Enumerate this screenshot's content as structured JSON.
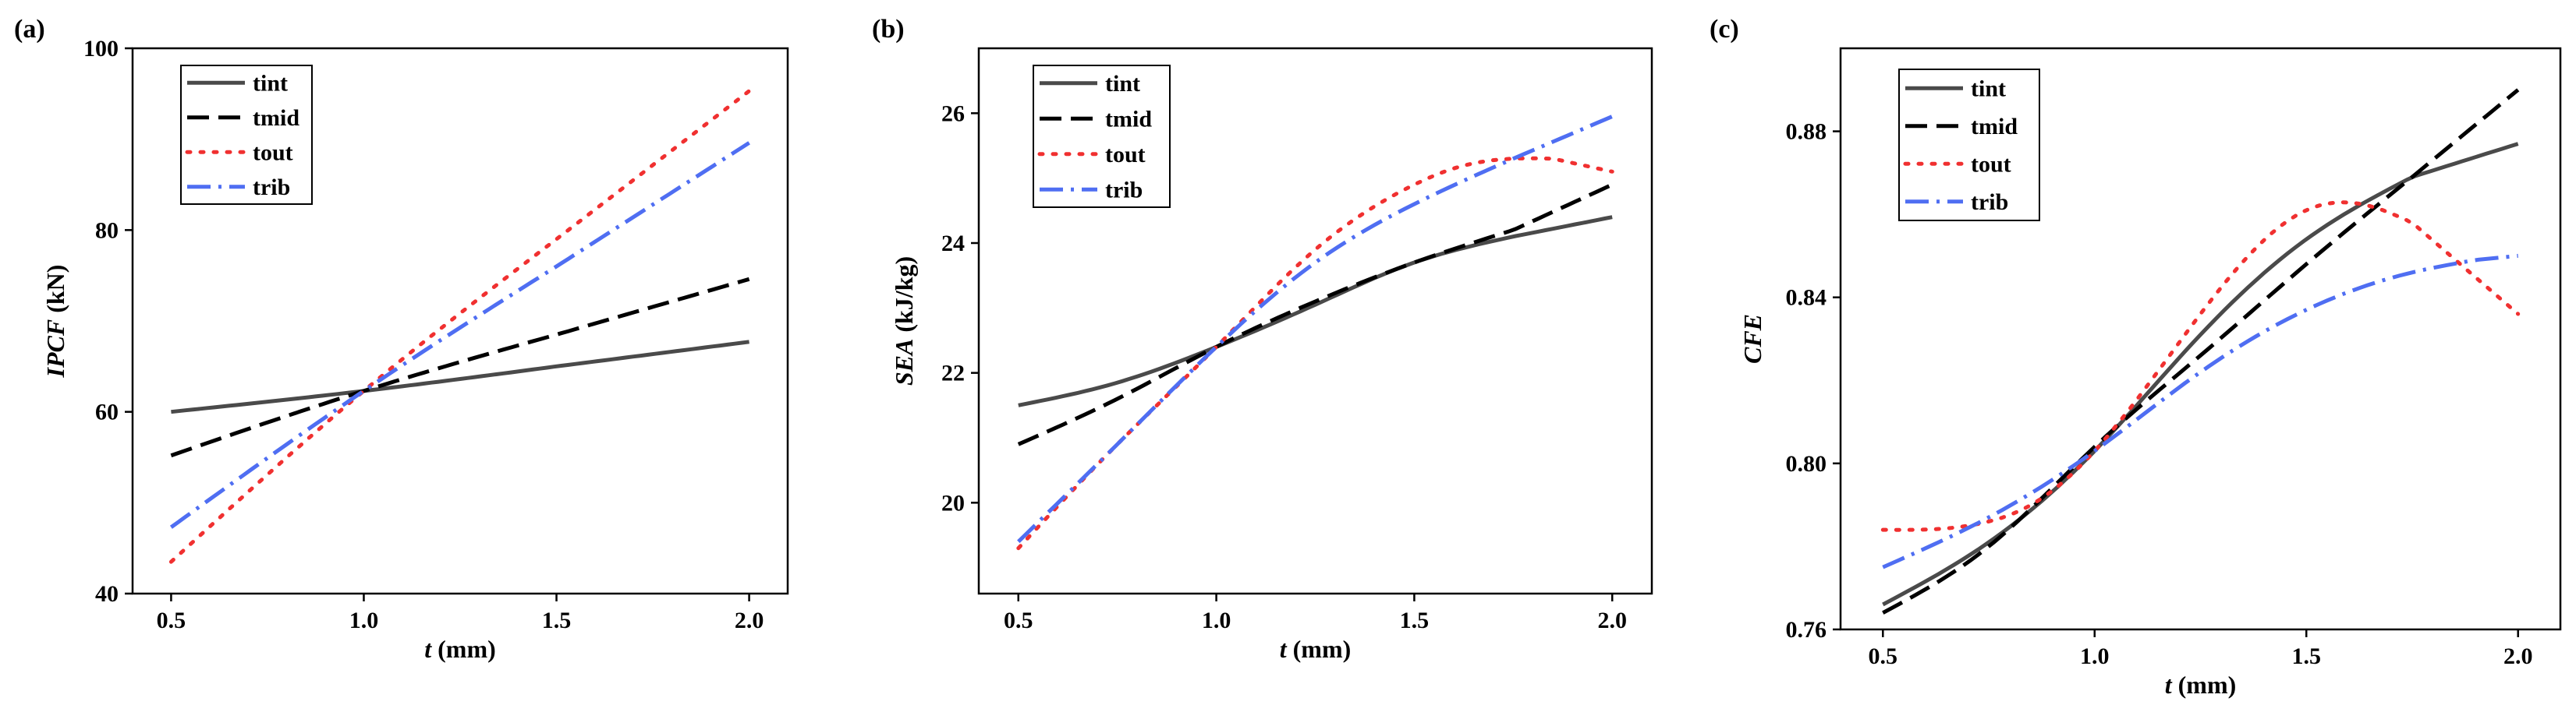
{
  "chart_data": [
    {
      "type": "line",
      "panel": "(a)",
      "title": "",
      "xlabel": {
        "main": "t",
        "unit": " (mm)"
      },
      "ylabel": {
        "main": "IPCF",
        "unit": " (kN)"
      },
      "xlim": [
        0.4,
        2.1
      ],
      "ylim": [
        40,
        100
      ],
      "xticks": [
        0.5,
        1.0,
        1.5,
        2.0
      ],
      "xtick_labels": [
        "0.5",
        "1.0",
        "1.5",
        "2.0"
      ],
      "yticks": [
        40,
        60,
        80,
        100
      ],
      "ytick_labels": [
        "40",
        "60",
        "80",
        "100"
      ],
      "legend_position": "top-left",
      "series": [
        {
          "name": "tint",
          "style": "solid",
          "color": "#4a4a4a",
          "x": [
            0.5,
            1.0,
            1.5,
            2.0
          ],
          "y": [
            60.0,
            62.3,
            65.0,
            67.7
          ]
        },
        {
          "name": "tmid",
          "style": "dashed",
          "color": "#000000",
          "x": [
            0.5,
            1.0,
            1.5,
            2.0
          ],
          "y": [
            55.2,
            62.3,
            68.5,
            74.6
          ]
        },
        {
          "name": "tout",
          "style": "dotted",
          "color": "#f03030",
          "x": [
            0.5,
            1.0,
            1.5,
            2.0
          ],
          "y": [
            43.5,
            62.3,
            79.0,
            95.3
          ]
        },
        {
          "name": "trib",
          "style": "dashdot",
          "color": "#4f6ef2",
          "x": [
            0.5,
            1.0,
            1.5,
            2.0
          ],
          "y": [
            47.3,
            62.3,
            76.0,
            89.6
          ]
        }
      ]
    },
    {
      "type": "line",
      "panel": "(b)",
      "title": "",
      "xlabel": {
        "main": "t",
        "unit": " (mm)"
      },
      "ylabel": {
        "main": "SEA",
        "unit": " (kJ/kg)"
      },
      "xlim": [
        0.4,
        2.1
      ],
      "ylim": [
        18.6,
        27.0
      ],
      "xticks": [
        0.5,
        1.0,
        1.5,
        2.0
      ],
      "xtick_labels": [
        "0.5",
        "1.0",
        "1.5",
        "2.0"
      ],
      "yticks": [
        20,
        22,
        24,
        26
      ],
      "ytick_labels": [
        "20",
        "22",
        "24",
        "26"
      ],
      "legend_position": "top-left",
      "series": [
        {
          "name": "tint",
          "style": "solid",
          "color": "#4a4a4a",
          "x": [
            0.5,
            0.75,
            1.0,
            1.25,
            1.5,
            1.75,
            2.0
          ],
          "y": [
            21.5,
            21.85,
            22.4,
            23.05,
            23.7,
            24.1,
            24.4
          ]
        },
        {
          "name": "tmid",
          "style": "dashed",
          "color": "#000000",
          "x": [
            0.5,
            0.75,
            1.0,
            1.25,
            1.5,
            1.75,
            2.0
          ],
          "y": [
            20.9,
            21.6,
            22.4,
            23.1,
            23.7,
            24.2,
            24.9
          ]
        },
        {
          "name": "tout",
          "style": "dotted",
          "color": "#f03030",
          "x": [
            0.5,
            0.75,
            1.0,
            1.25,
            1.5,
            1.6,
            1.75,
            1.85,
            2.0
          ],
          "y": [
            19.3,
            20.9,
            22.4,
            23.9,
            24.9,
            25.15,
            25.3,
            25.3,
            25.1
          ]
        },
        {
          "name": "trib",
          "style": "dashdot",
          "color": "#4f6ef2",
          "x": [
            0.5,
            0.75,
            1.0,
            1.25,
            1.5,
            1.75,
            2.0
          ],
          "y": [
            19.4,
            20.9,
            22.4,
            23.7,
            24.6,
            25.3,
            25.95
          ]
        }
      ]
    },
    {
      "type": "line",
      "panel": "(c)",
      "title": "",
      "xlabel": {
        "main": "t",
        "unit": " (mm)"
      },
      "ylabel": {
        "main": "CFE",
        "unit": ""
      },
      "xlim": [
        0.4,
        2.1
      ],
      "ylim": [
        0.76,
        0.9
      ],
      "xticks": [
        0.5,
        1.0,
        1.5,
        2.0
      ],
      "xtick_labels": [
        "0.5",
        "1.0",
        "1.5",
        "2.0"
      ],
      "yticks": [
        0.76,
        0.8,
        0.84,
        0.88
      ],
      "ytick_labels": [
        "0.76",
        "0.80",
        "0.84",
        "0.88"
      ],
      "legend_position": "top-left",
      "series": [
        {
          "name": "tint",
          "style": "solid",
          "color": "#4a4a4a",
          "x": [
            0.5,
            0.75,
            1.0,
            1.25,
            1.5,
            1.75,
            2.0
          ],
          "y": [
            0.766,
            0.781,
            0.803,
            0.831,
            0.854,
            0.869,
            0.877
          ]
        },
        {
          "name": "tmid",
          "style": "dashed",
          "color": "#000000",
          "x": [
            0.5,
            0.75,
            1.0,
            1.25,
            1.5,
            1.75,
            2.0
          ],
          "y": [
            0.764,
            0.78,
            0.804,
            0.826,
            0.848,
            0.869,
            0.89
          ]
        },
        {
          "name": "tout",
          "style": "dotted",
          "color": "#f03030",
          "x": [
            0.5,
            0.75,
            0.85,
            1.0,
            1.25,
            1.5,
            1.65,
            1.75,
            2.0
          ],
          "y": [
            0.784,
            0.786,
            0.79,
            0.803,
            0.836,
            0.861,
            0.862,
            0.858,
            0.836
          ]
        },
        {
          "name": "trib",
          "style": "dashdot",
          "color": "#4f6ef2",
          "x": [
            0.5,
            0.75,
            1.0,
            1.25,
            1.5,
            1.75,
            1.9,
            2.0
          ],
          "y": [
            0.775,
            0.787,
            0.803,
            0.822,
            0.837,
            0.846,
            0.849,
            0.85
          ]
        }
      ]
    }
  ]
}
